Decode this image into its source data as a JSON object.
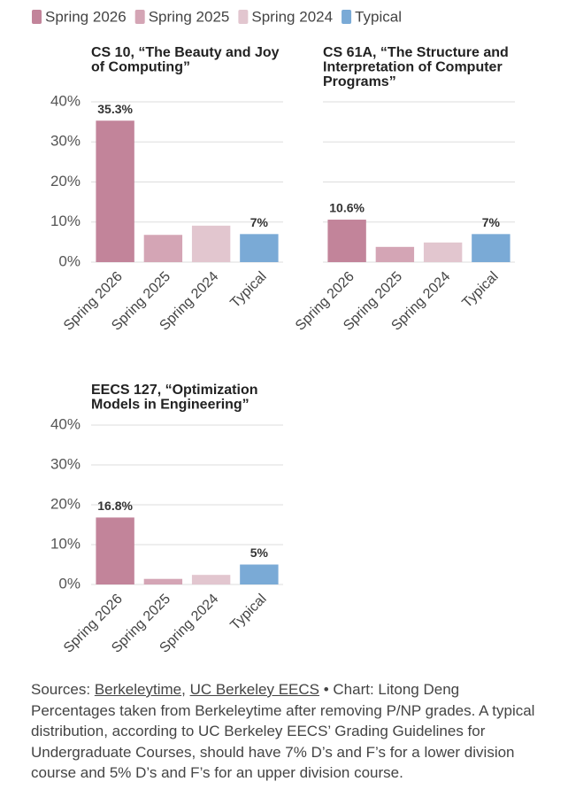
{
  "legend": [
    {
      "name": "Spring 2026",
      "color": "#c2849a"
    },
    {
      "name": "Spring 2025",
      "color": "#d4a5b5"
    },
    {
      "name": "Spring 2024",
      "color": "#e2c6cf"
    },
    {
      "name": "Typical",
      "color": "#7aaad6"
    }
  ],
  "chart_data": [
    {
      "type": "bar",
      "title_lines": [
        "CS 10, “The Beauty and Joy",
        "of Computing”"
      ],
      "categories": [
        "Spring 2026",
        "Spring 2025",
        "Spring 2024",
        "Typical"
      ],
      "values": [
        35.3,
        6.8,
        9.1,
        7
      ],
      "value_labels": [
        "35.3%",
        null,
        null,
        "7%"
      ],
      "colors": [
        "#c2849a",
        "#d4a5b5",
        "#e2c6cf",
        "#7aaad6"
      ],
      "ylim": [
        0,
        40
      ],
      "yticks": [
        {
          "value": 0,
          "label": "0%"
        },
        {
          "value": 10,
          "label": "10%"
        },
        {
          "value": 20,
          "label": "20%"
        },
        {
          "value": 30,
          "label": "30%"
        },
        {
          "value": 40,
          "label": "40%"
        }
      ],
      "grid": true
    },
    {
      "type": "bar",
      "title_lines": [
        "CS 61A, “The Structure and",
        "Interpretation of Computer",
        "Programs”"
      ],
      "categories": [
        "Spring 2026",
        "Spring 2025",
        "Spring 2024",
        "Typical"
      ],
      "values": [
        10.6,
        3.8,
        4.9,
        7
      ],
      "value_labels": [
        "10.6%",
        null,
        null,
        "7%"
      ],
      "colors": [
        "#c2849a",
        "#d4a5b5",
        "#e2c6cf",
        "#7aaad6"
      ],
      "ylim": [
        0,
        40
      ],
      "yticks": [
        0,
        10,
        20,
        30,
        40
      ],
      "ytick_labels": false,
      "grid": true
    },
    {
      "type": "bar",
      "title_lines": [
        "EECS 127, “Optimization",
        "Models in Engineering”"
      ],
      "categories": [
        "Spring 2026",
        "Spring 2025",
        "Spring 2024",
        "Typical"
      ],
      "values": [
        16.8,
        1.4,
        2.4,
        5
      ],
      "value_labels": [
        "16.8%",
        null,
        null,
        "5%"
      ],
      "colors": [
        "#c2849a",
        "#d4a5b5",
        "#e2c6cf",
        "#7aaad6"
      ],
      "ylim": [
        0,
        40
      ],
      "yticks": [
        {
          "value": 0,
          "label": "0%"
        },
        {
          "value": 10,
          "label": "10%"
        },
        {
          "value": 20,
          "label": "20%"
        },
        {
          "value": 30,
          "label": "30%"
        },
        {
          "value": 40,
          "label": "40%"
        }
      ],
      "grid": true
    }
  ],
  "footer": {
    "sources": [
      "Sources:",
      "Berkeleytime",
      ",",
      "UC Berkeley EECS",
      "• Chart: Litong Deng"
    ],
    "note": "Percentages taken from Berkeleytime after removing P/NP grades. A typical distribution, according to UC Berkeley EECS’ Grading Guidelines for Undergraduate Courses, should have 7% D’s and F’s for a lower division course and 5% D’s and F’s for an upper division course."
  }
}
